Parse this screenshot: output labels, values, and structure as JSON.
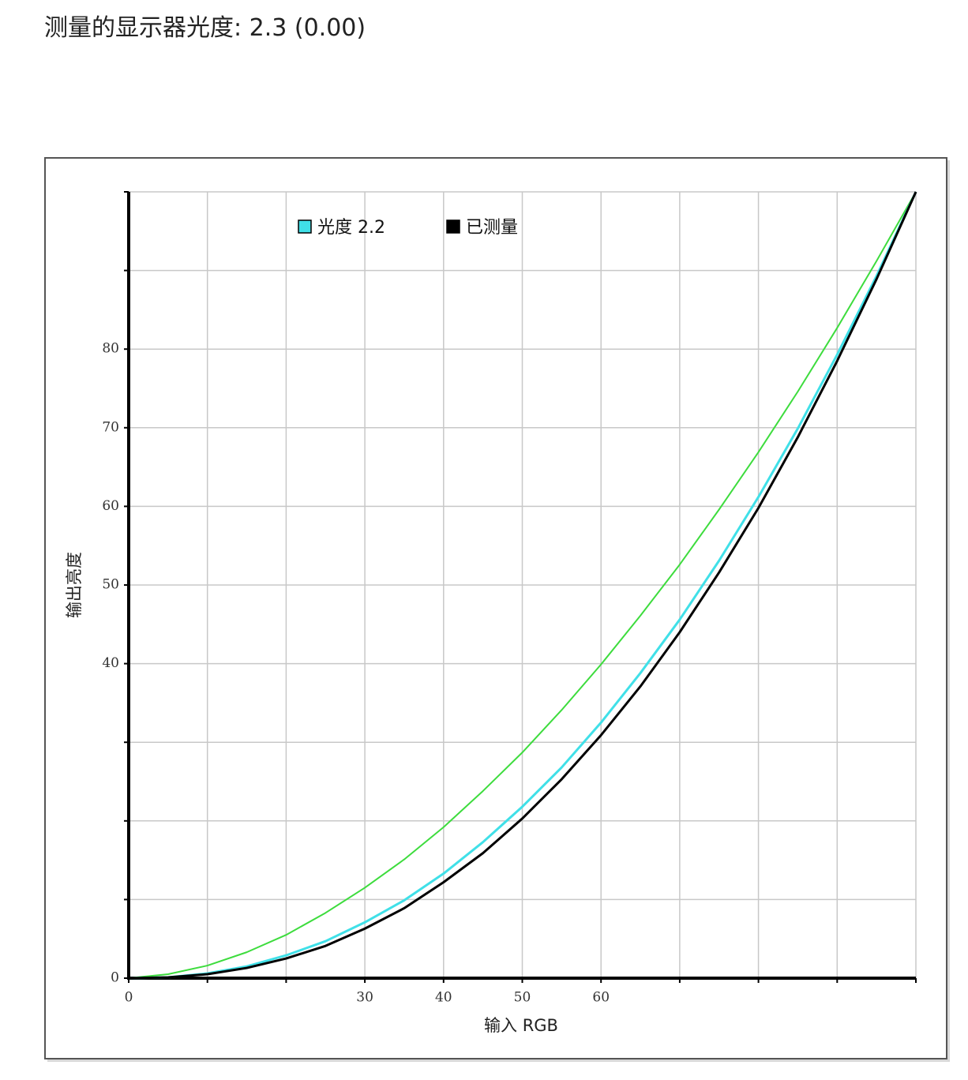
{
  "header": {
    "title": "测量的显示器光度: 2.3 (0.00)"
  },
  "chart_data": {
    "type": "line",
    "xlabel": "输入 RGB",
    "ylabel": "输出亮度",
    "x": [
      0,
      5,
      10,
      15,
      20,
      25,
      30,
      35,
      40,
      45,
      50,
      55,
      60,
      65,
      70,
      75,
      80,
      85,
      90,
      95,
      100
    ],
    "series": [
      {
        "color": "#3ddc3d",
        "width": 2,
        "values": [
          0,
          0.5,
          1.6,
          3.3,
          5.5,
          8.3,
          11.5,
          15.1,
          19.2,
          23.8,
          28.7,
          34.1,
          39.9,
          46.1,
          52.6,
          59.6,
          66.9,
          74.6,
          82.7,
          91.2,
          100
        ]
      },
      {
        "name": "光度 2.2",
        "color": "#40e0e8",
        "width": 3,
        "values": [
          0,
          0.1,
          0.6,
          1.5,
          2.9,
          4.7,
          7.1,
          9.9,
          13.3,
          17.3,
          21.8,
          26.8,
          32.5,
          38.8,
          45.6,
          53.1,
          61.2,
          69.9,
          79.3,
          89.3,
          100
        ]
      },
      {
        "name": "已测量",
        "color": "#000000",
        "width": 3,
        "values": [
          0,
          0.1,
          0.5,
          1.3,
          2.5,
          4.1,
          6.3,
          8.9,
          12.2,
          15.9,
          20.3,
          25.3,
          30.9,
          37.1,
          44.0,
          51.6,
          59.8,
          68.8,
          78.5,
          88.9,
          100
        ]
      }
    ],
    "xlim": [
      0,
      100
    ],
    "ylim": [
      0,
      100
    ],
    "xticks": [
      0,
      {
        "value": 10,
        "label": null
      },
      {
        "value": 20,
        "label": null
      },
      30,
      40,
      50,
      60,
      {
        "value": 70,
        "label": null
      },
      {
        "value": 80,
        "label": null
      },
      {
        "value": 90,
        "label": null
      },
      {
        "value": 100,
        "label": null
      }
    ],
    "yticks": [
      0,
      {
        "value": 10,
        "label": null
      },
      {
        "value": 20,
        "label": null
      },
      {
        "value": 30,
        "label": null
      },
      40,
      50,
      60,
      70,
      80,
      {
        "value": 90,
        "label": null
      },
      {
        "value": 100,
        "label": null
      }
    ],
    "grid": true,
    "legend": "top"
  }
}
